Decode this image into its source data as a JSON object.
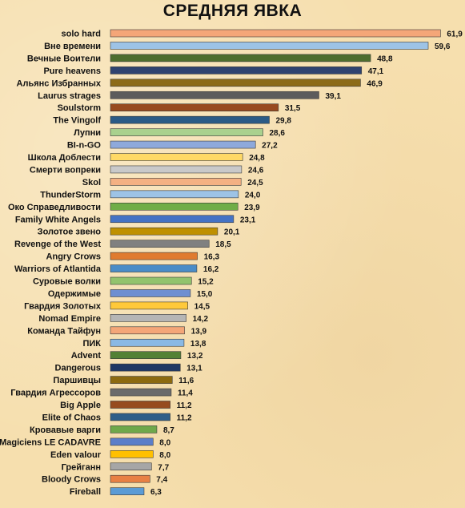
{
  "chart_data": {
    "type": "bar",
    "orientation": "horizontal",
    "title": "СРЕДНЯЯ ЯВКА",
    "xlim": [
      0,
      62
    ],
    "grid": false,
    "legend": "none",
    "categories": [
      "solo hard",
      "Вне времени",
      "Вечные Воители",
      "Pure heavens",
      "Альянс Избранных",
      "Laurus strages",
      "Soulstorm",
      "The Vingolf",
      "Лупни",
      "BI-n-GO",
      "Школа Доблести",
      "Смерти вопреки",
      "Skol",
      "ThunderStorm",
      "Око Справедливости",
      "Family White Angels",
      "Золотое звено",
      "Revenge of the West",
      "Angry Crows",
      "Warriors of Atlantida",
      "Суровые волки",
      "Одержимые",
      "Гвардия Золотых",
      "Nomad Empire",
      "Команда Тайфун",
      "ПИК",
      "Advent",
      "Dangerous",
      "Паршивцы",
      "Гвардия Агрессоров",
      "Big Apple",
      "Elite of Chaos",
      "Кровавые варги",
      "Magiciens LE CADAVRE",
      "Eden valour",
      "Грейганн",
      "Bloody Crows",
      "Fireball"
    ],
    "values": [
      61.9,
      59.6,
      48.8,
      47.1,
      46.9,
      39.1,
      31.5,
      29.8,
      28.6,
      27.2,
      24.8,
      24.6,
      24.5,
      24.0,
      23.9,
      23.1,
      20.1,
      18.5,
      16.3,
      16.2,
      15.2,
      15.0,
      14.5,
      14.2,
      13.9,
      13.8,
      13.2,
      13.1,
      11.6,
      11.4,
      11.2,
      11.2,
      8.7,
      8.0,
      8.0,
      7.7,
      7.4,
      6.3
    ],
    "value_labels": [
      "61,9",
      "59,6",
      "48,8",
      "47,1",
      "46,9",
      "39,1",
      "31,5",
      "29,8",
      "28,6",
      "27,2",
      "24,8",
      "24,6",
      "24,5",
      "24,0",
      "23,9",
      "23,1",
      "20,1",
      "18,5",
      "16,3",
      "16,2",
      "15,2",
      "15,0",
      "14,5",
      "14,2",
      "13,9",
      "13,8",
      "13,2",
      "13,1",
      "11,6",
      "11,4",
      "11,2",
      "11,2",
      "8,7",
      "8,0",
      "8,0",
      "7,7",
      "7,4",
      "6,3"
    ],
    "colors": [
      "#f4a678",
      "#9dc3e6",
      "#4e6e2e",
      "#2f4370",
      "#8c6b18",
      "#5c5c5c",
      "#984a1f",
      "#2b5b86",
      "#a9d18e",
      "#8ea9db",
      "#ffd966",
      "#c9c9c9",
      "#f4b183",
      "#9dc3e6",
      "#70ad47",
      "#4472c4",
      "#bf9000",
      "#808080",
      "#e07b30",
      "#4a8cc7",
      "#92c36d",
      "#6e8fd1",
      "#ffc93a",
      "#b5b5b5",
      "#f4a678",
      "#8ab9e4",
      "#538135",
      "#203864",
      "#8c6a10",
      "#6b6b6b",
      "#964b1e",
      "#2e5e88",
      "#6fa84a",
      "#5b7ec9",
      "#ffc000",
      "#a6a6a6",
      "#e88044",
      "#5b9bd5"
    ]
  }
}
